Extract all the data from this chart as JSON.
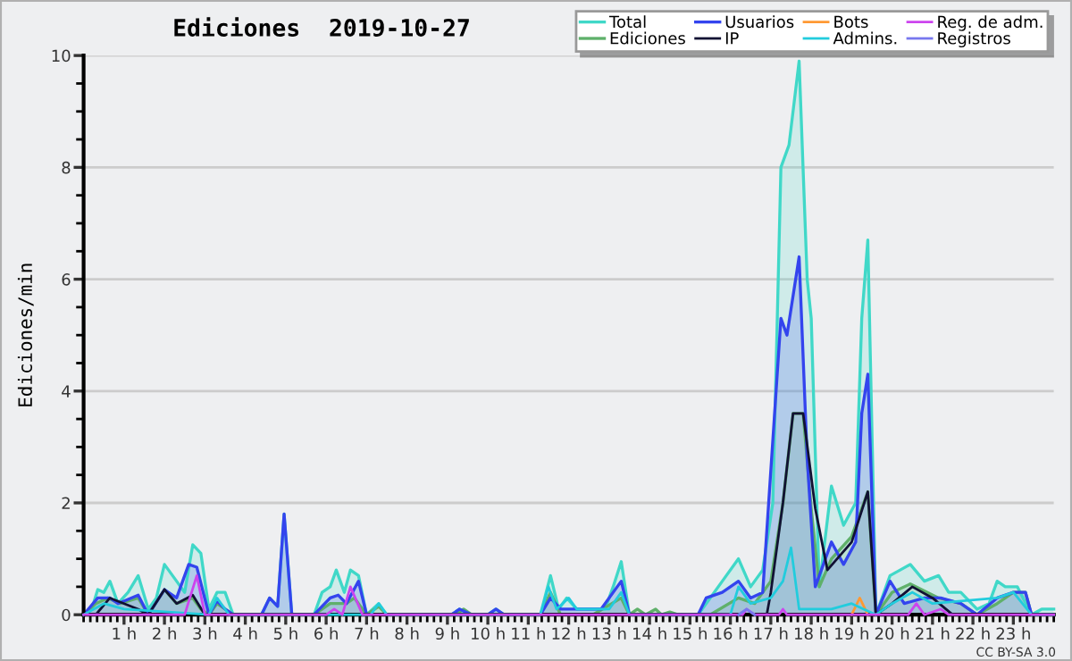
{
  "chart_data": {
    "type": "area",
    "title": "Ediciones  2019-10-27",
    "ylabel": "Ediciones/min",
    "xlim": [
      0,
      24
    ],
    "ylim": [
      0,
      10
    ],
    "yticks": [
      0,
      2,
      4,
      6,
      8,
      10
    ],
    "xticks": [
      {
        "value": 1,
        "label": "1 h"
      },
      {
        "value": 2,
        "label": "2 h"
      },
      {
        "value": 3,
        "label": "3 h"
      },
      {
        "value": 4,
        "label": "4 h"
      },
      {
        "value": 5,
        "label": "5 h"
      },
      {
        "value": 6,
        "label": "6 h"
      },
      {
        "value": 7,
        "label": "7 h"
      },
      {
        "value": 8,
        "label": "8 h"
      },
      {
        "value": 9,
        "label": "9 h"
      },
      {
        "value": 10,
        "label": "10 h"
      },
      {
        "value": 11,
        "label": "11 h"
      },
      {
        "value": 12,
        "label": "12 h"
      },
      {
        "value": 13,
        "label": "13 h"
      },
      {
        "value": 14,
        "label": "14 h"
      },
      {
        "value": 15,
        "label": "15 h"
      },
      {
        "value": 16,
        "label": "16 h"
      },
      {
        "value": 17,
        "label": "17 h"
      },
      {
        "value": 18,
        "label": "18 h"
      },
      {
        "value": 19,
        "label": "19 h"
      },
      {
        "value": 20,
        "label": "20 h"
      },
      {
        "value": 21,
        "label": "21 h"
      },
      {
        "value": 22,
        "label": "22 h"
      },
      {
        "value": 23,
        "label": "23 h"
      }
    ],
    "grid": "y",
    "legend": "top right",
    "annotations": [
      "CC BY-SA 3.0"
    ],
    "series": [
      {
        "name": "Total",
        "color": "#40d8c8",
        "x": [
          0,
          0.2,
          0.35,
          0.5,
          0.65,
          0.85,
          1.1,
          1.35,
          1.6,
          1.8,
          2.0,
          2.3,
          2.5,
          2.7,
          2.9,
          3.1,
          3.3,
          3.5,
          3.7,
          4.4,
          4.6,
          4.8,
          4.96,
          5.15,
          5.7,
          5.9,
          6.1,
          6.25,
          6.45,
          6.6,
          6.8,
          7.0,
          7.3,
          7.5,
          9.1,
          9.3,
          9.6,
          10.0,
          10.2,
          10.4,
          11.3,
          11.55,
          11.75,
          11.95,
          12.2,
          12.9,
          13.1,
          13.3,
          13.5,
          15.2,
          15.5,
          15.8,
          16.2,
          16.5,
          16.8,
          17.05,
          17.25,
          17.45,
          17.7,
          17.9,
          18.0,
          18.2,
          18.5,
          18.8,
          19.1,
          19.25,
          19.4,
          19.6,
          19.95,
          20.2,
          20.45,
          20.8,
          21.15,
          21.4,
          21.7,
          22.1,
          22.4,
          22.6,
          22.8,
          23.1,
          23.45,
          23.7,
          24
        ],
        "values": [
          0,
          0.1,
          0.45,
          0.4,
          0.6,
          0.2,
          0.4,
          0.7,
          0.1,
          0.3,
          0.9,
          0.6,
          0.4,
          1.25,
          1.1,
          0.1,
          0.4,
          0.4,
          0,
          0,
          0.3,
          0.15,
          1.8,
          0,
          0,
          0.4,
          0.5,
          0.8,
          0.4,
          0.8,
          0.7,
          0,
          0.2,
          0,
          0,
          0.1,
          0,
          0,
          0.1,
          0,
          0,
          0.7,
          0.1,
          0.3,
          0.1,
          0.1,
          0.5,
          0.95,
          0,
          0,
          0.3,
          0.6,
          1.0,
          0.5,
          0.8,
          2.0,
          8.0,
          8.4,
          9.9,
          6.0,
          5.3,
          0.5,
          2.3,
          1.6,
          2.0,
          5.3,
          6.7,
          0,
          0.7,
          0.8,
          0.9,
          0.6,
          0.7,
          0.4,
          0.4,
          0.1,
          0.2,
          0.6,
          0.5,
          0.5,
          0,
          0.1,
          0.1
        ]
      },
      {
        "name": "Ediciones",
        "color": "#5fb06a",
        "x": [
          0,
          0.3,
          0.6,
          0.9,
          1.35,
          1.6,
          2.0,
          2.3,
          2.7,
          2.9,
          3.1,
          3.3,
          3.5,
          3.7,
          5.7,
          6.1,
          6.5,
          6.7,
          7.0,
          7.3,
          7.5,
          9.2,
          9.4,
          9.6,
          11.3,
          11.55,
          11.8,
          12.6,
          13.3,
          13.5,
          13.7,
          13.9,
          14.15,
          14.3,
          14.5,
          14.7,
          15.5,
          16.2,
          16.6,
          17.0,
          17.3,
          17.55,
          17.8,
          18.0,
          18.2,
          18.5,
          19.0,
          19.4,
          19.6,
          20.0,
          20.45,
          21.15,
          21.7,
          22.1,
          22.6,
          23.0,
          23.3,
          23.45,
          24
        ],
        "values": [
          0,
          0.2,
          0.3,
          0.2,
          0.3,
          0,
          0.45,
          0.2,
          0.3,
          0.1,
          0,
          0.2,
          0.1,
          0,
          0,
          0.2,
          0.2,
          0.3,
          0,
          0.15,
          0,
          0,
          0.1,
          0,
          0,
          0.4,
          0,
          0,
          0.3,
          0,
          0.1,
          0,
          0.1,
          0,
          0.05,
          0,
          0,
          0.3,
          0.2,
          0.6,
          2.0,
          3.6,
          3.6,
          1.9,
          0.5,
          1.0,
          1.4,
          2.2,
          0,
          0.4,
          0.55,
          0.3,
          0.2,
          0,
          0.2,
          0.4,
          0.4,
          0,
          0
        ]
      },
      {
        "name": "Usuarios",
        "color": "#3344ee",
        "x": [
          0,
          0.35,
          0.65,
          0.85,
          1.35,
          1.6,
          2.0,
          2.3,
          2.6,
          2.8,
          3.1,
          3.3,
          3.5,
          3.7,
          4.4,
          4.6,
          4.8,
          4.96,
          5.15,
          5.7,
          6.1,
          6.3,
          6.5,
          6.8,
          7.0,
          9.1,
          9.3,
          9.6,
          10.0,
          10.2,
          10.4,
          11.3,
          11.55,
          11.8,
          12.8,
          13.3,
          13.5,
          15.2,
          15.4,
          15.8,
          16.2,
          16.5,
          16.8,
          17.25,
          17.4,
          17.7,
          17.9,
          18.1,
          18.5,
          18.8,
          19.1,
          19.25,
          19.4,
          19.6,
          19.95,
          20.3,
          20.8,
          21.2,
          21.7,
          22.1,
          22.6,
          23.0,
          23.3,
          23.45,
          24
        ],
        "values": [
          0,
          0.3,
          0.3,
          0.2,
          0.35,
          0,
          0.45,
          0.3,
          0.9,
          0.85,
          0,
          0.25,
          0.1,
          0,
          0,
          0.3,
          0.15,
          1.8,
          0,
          0,
          0.3,
          0.35,
          0.2,
          0.6,
          0,
          0,
          0.1,
          0,
          0,
          0.1,
          0,
          0,
          0.3,
          0.1,
          0.1,
          0.6,
          0,
          0,
          0.3,
          0.4,
          0.6,
          0.3,
          0.4,
          5.3,
          5.0,
          6.4,
          2.8,
          0.5,
          1.3,
          0.9,
          1.3,
          3.6,
          4.3,
          0,
          0.6,
          0.2,
          0.3,
          0.3,
          0.2,
          0,
          0.3,
          0.4,
          0.4,
          0,
          0
        ]
      },
      {
        "name": "IP",
        "type": "line",
        "color": "#111133",
        "x": [
          0.3,
          0.65,
          1.35,
          1.6,
          2.0,
          2.3,
          2.7,
          3.0,
          3.05,
          16.9,
          17.0,
          17.3,
          17.55,
          17.8,
          18.1,
          18.4,
          19.0,
          19.4,
          19.6,
          20.0,
          20.5,
          21.0,
          21.5
        ],
        "values": [
          0,
          0.3,
          0.1,
          0,
          0.45,
          0.2,
          0.35,
          0,
          null,
          0,
          0.4,
          2.0,
          3.6,
          3.6,
          1.9,
          0.8,
          1.3,
          2.2,
          0,
          0.2,
          0.5,
          0.3,
          0
        ]
      },
      {
        "name": "Bots",
        "type": "line",
        "color": "#ff9933",
        "x": [
          19.0,
          19.2,
          19.4
        ],
        "values": [
          0,
          0.3,
          0
        ]
      },
      {
        "name": "Admins.",
        "type": "line",
        "color": "#22ccdd",
        "x": [
          0,
          0.5,
          1.0,
          3.1,
          3.3,
          3.6,
          7.1,
          7.3,
          7.5,
          11.3,
          11.5,
          11.7,
          12.0,
          12.2,
          13.0,
          13.3,
          13.5,
          16.0,
          16.2,
          16.5,
          17.0,
          17.3,
          17.5,
          17.7,
          18.5,
          19.0,
          19.6,
          20.0,
          20.5,
          21.0,
          22.6,
          23.0,
          23.45,
          24
        ],
        "values": [
          0,
          0.2,
          0.1,
          0,
          0.3,
          0,
          0,
          0.2,
          0,
          0,
          0.5,
          0.1,
          0.3,
          0.1,
          0.1,
          0.4,
          0,
          0,
          0.5,
          0.2,
          0.3,
          0.6,
          1.2,
          0.1,
          0.1,
          0.2,
          0,
          0.2,
          0.4,
          0.2,
          0.3,
          0.4,
          0,
          0
        ]
      },
      {
        "name": "Reg. de adm.",
        "type": "line",
        "color": "#cc44ee",
        "x": [
          0,
          2.5,
          2.8,
          3.0,
          6.0,
          6.2,
          6.4,
          6.6,
          6.9,
          16.3,
          16.4,
          16.6,
          17.2,
          17.3,
          17.4,
          20.4,
          20.6,
          20.8,
          21.2,
          21.4,
          24
        ],
        "values": [
          0,
          0,
          0.7,
          0,
          0,
          0.1,
          0,
          0.5,
          0,
          0,
          0.1,
          0,
          0,
          0.1,
          0,
          0,
          0.2,
          0,
          0.1,
          0,
          0
        ]
      },
      {
        "name": "Registros",
        "type": "line",
        "color": "#7777ee",
        "x": [
          16.2,
          16.4,
          16.6
        ],
        "values": [
          0,
          0.1,
          0
        ]
      }
    ]
  }
}
